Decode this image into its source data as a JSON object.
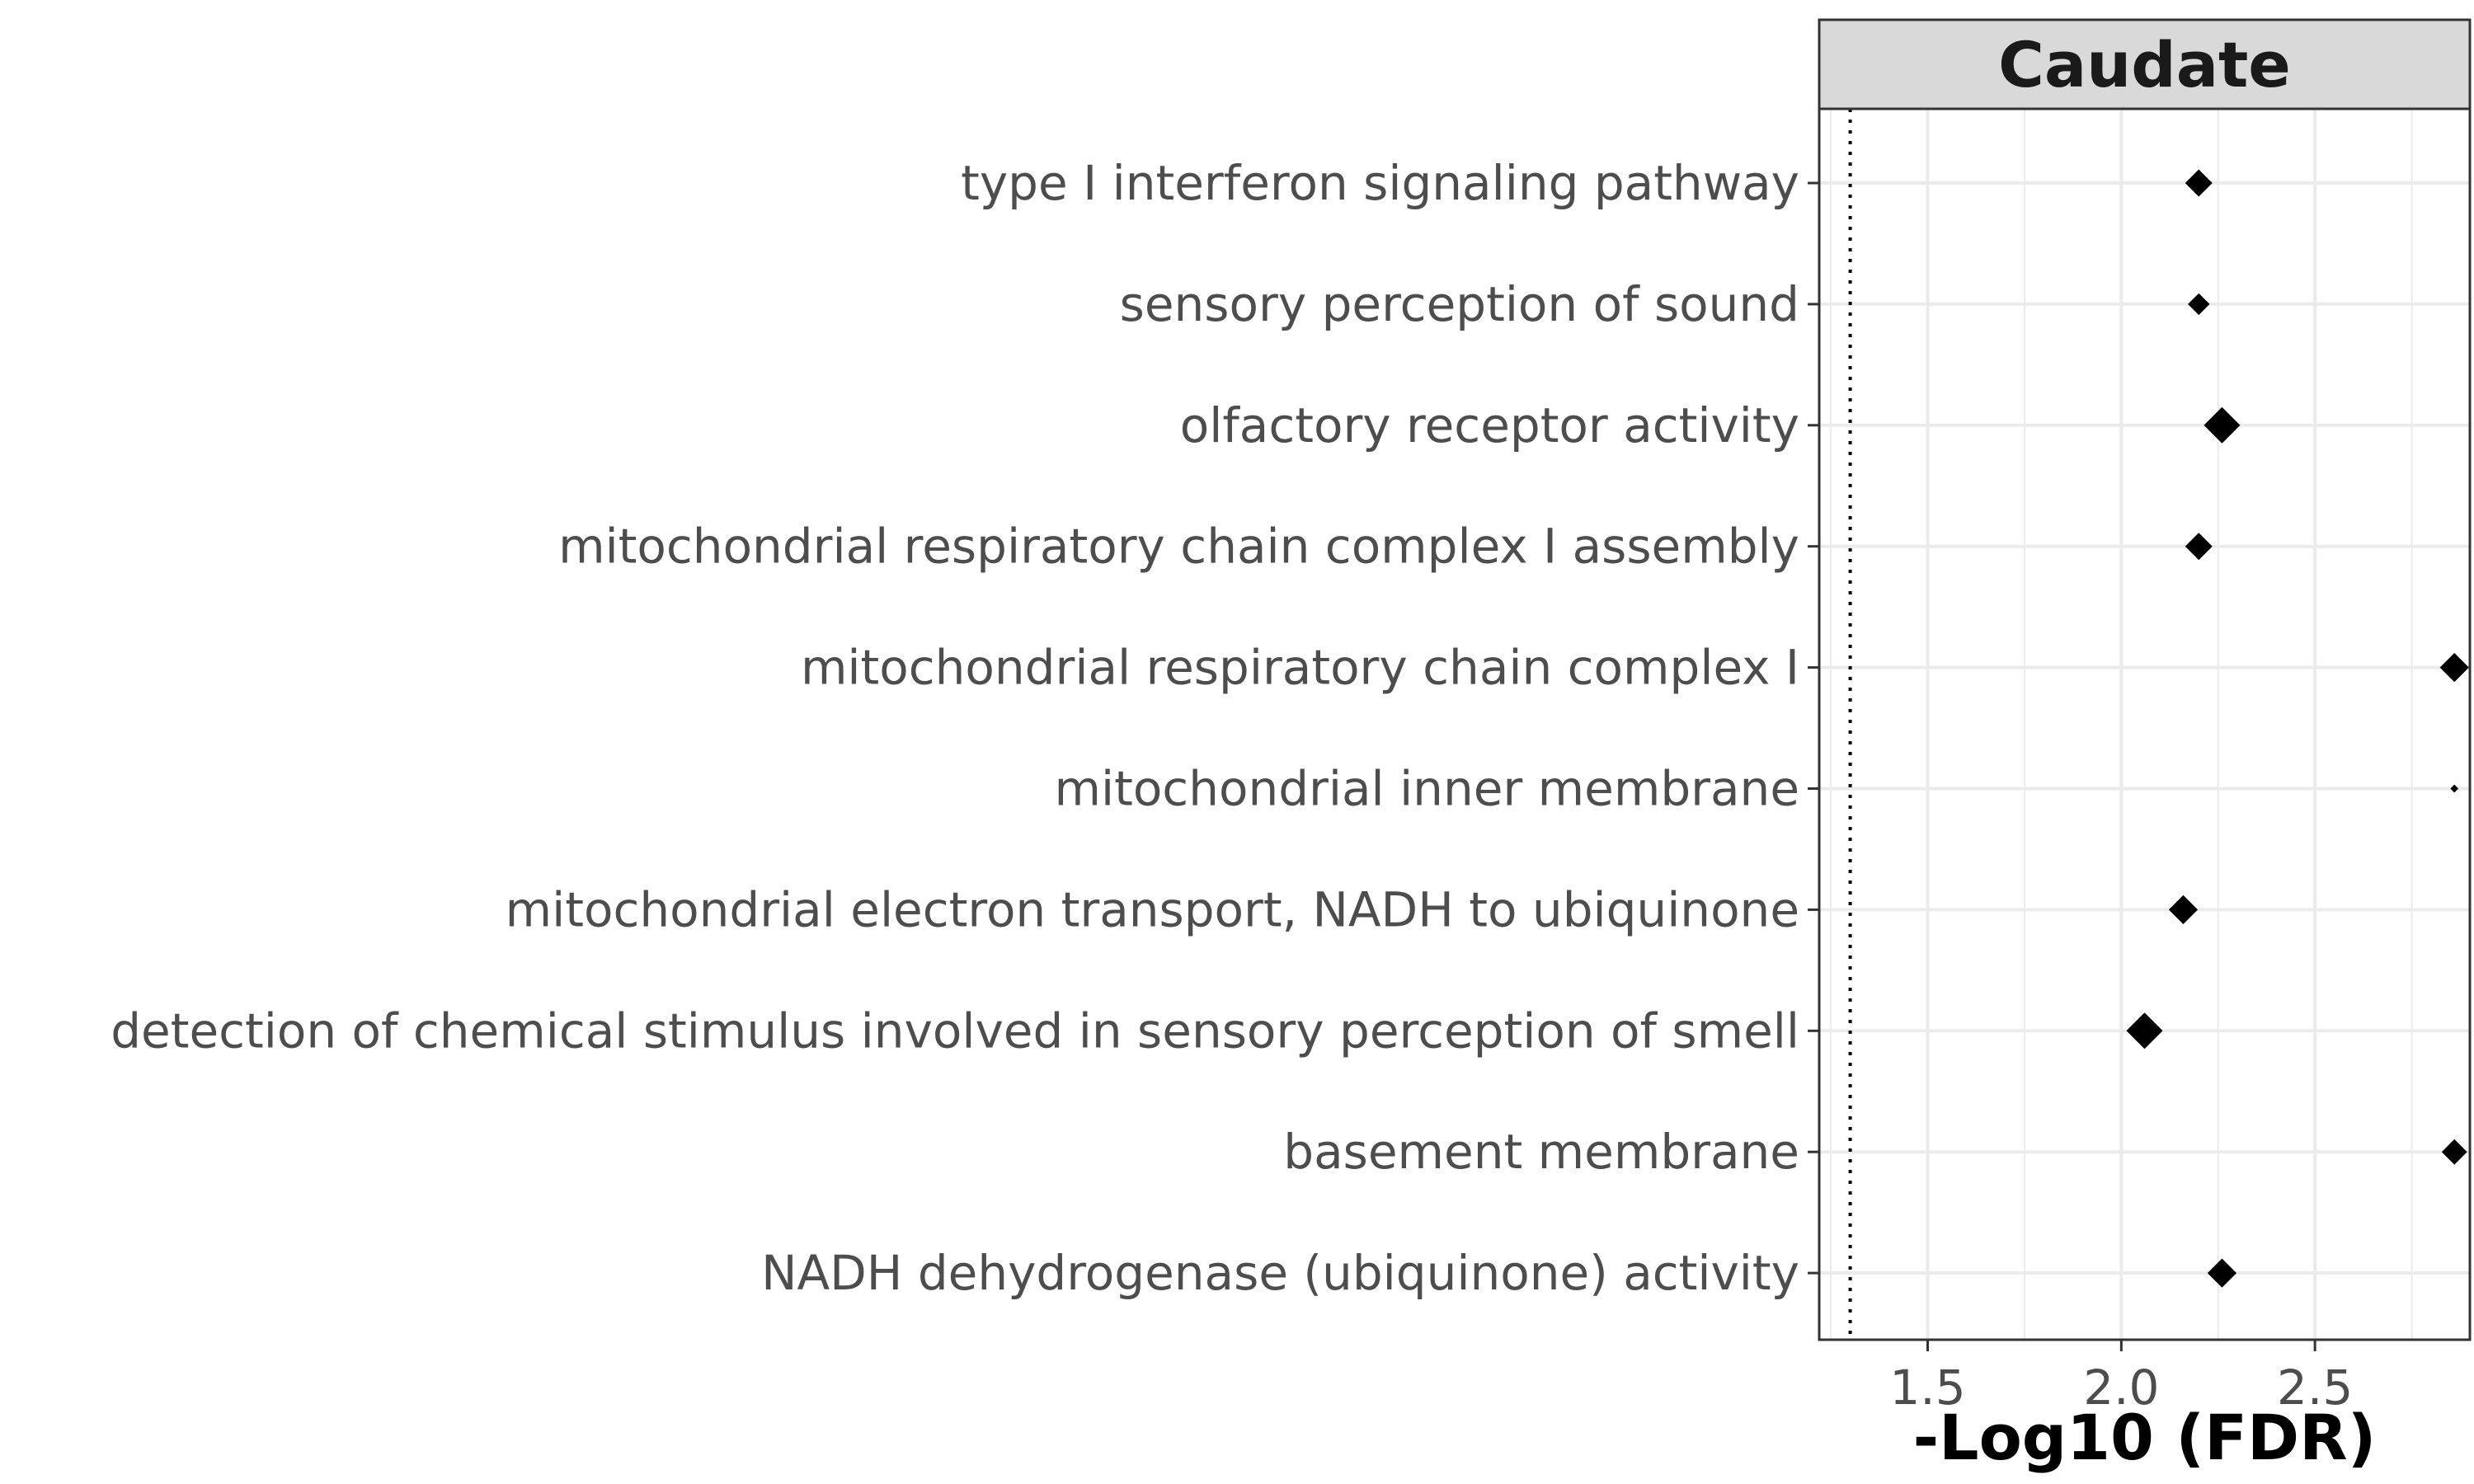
{
  "chart_data": {
    "type": "scatter",
    "facet": "Caudate",
    "xlabel": "-Log10 (FDR)",
    "ylabel": "",
    "xlim": [
      1.22,
      2.9
    ],
    "x_ticks": [
      1.5,
      2.0,
      2.5
    ],
    "x_tick_labels": [
      "1.5",
      "2.0",
      "2.5"
    ],
    "threshold_line": 1.3,
    "marker": "diamond",
    "marker_color": "#000000",
    "grid": true,
    "categories": [
      "type I interferon signaling pathway",
      "sensory perception of sound",
      "olfactory receptor activity",
      "mitochondrial respiratory chain complex I assembly",
      "mitochondrial respiratory chain complex I",
      "mitochondrial inner membrane",
      "mitochondrial electron transport, NADH to ubiquinone",
      "detection of chemical stimulus involved in sensory perception of smell",
      "basement membrane",
      "NADH dehydrogenase (ubiquinone) activity"
    ],
    "values": [
      2.2,
      2.2,
      2.26,
      2.2,
      2.86,
      2.86,
      2.16,
      2.06,
      2.86,
      2.26
    ],
    "marker_size_rel": [
      0.75,
      0.6,
      1.0,
      0.75,
      0.8,
      0.22,
      0.8,
      1.0,
      0.7,
      0.8
    ]
  }
}
